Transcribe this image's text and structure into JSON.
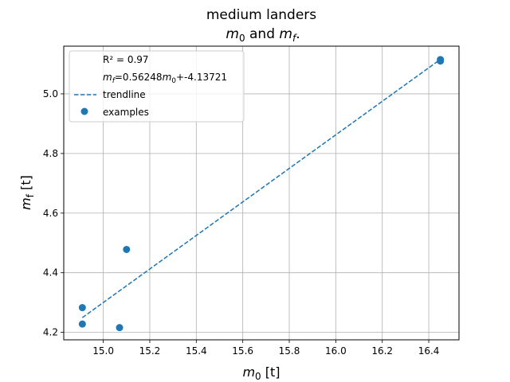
{
  "chart_data": {
    "type": "scatter",
    "title_line1": "medium landers",
    "title_line2": {
      "a": "m",
      "a_sub": "0",
      "mid": " and ",
      "b": "m",
      "b_sub": "f",
      "end": "."
    },
    "xlabel": {
      "var": "m",
      "sub": "0",
      "unit": " [t]"
    },
    "ylabel": {
      "var": "m",
      "sub": "f",
      "unit": " [t]"
    },
    "xlim": [
      14.83,
      16.53
    ],
    "ylim": [
      4.175,
      5.16
    ],
    "xticks": [
      15.0,
      15.2,
      15.4,
      15.6,
      15.8,
      16.0,
      16.2,
      16.4
    ],
    "xtick_labels": [
      "15.0",
      "15.2",
      "15.4",
      "15.6",
      "15.8",
      "16.0",
      "16.2",
      "16.4"
    ],
    "yticks": [
      4.2,
      4.4,
      4.6,
      4.8,
      5.0
    ],
    "ytick_labels": [
      "4.2",
      "4.4",
      "4.6",
      "4.8",
      "5.0"
    ],
    "grid": true,
    "legend_position": "top-left",
    "legend": {
      "r2": "R² = 0.97",
      "equation": {
        "lhs_var": "m",
        "lhs_sub": "f",
        "mid": "=0.56248",
        "rhs_var": "m",
        "rhs_sub": "0",
        "tail": "+-4.13721"
      },
      "trendline": "trendline",
      "examples": "examples"
    },
    "trendline": {
      "slope": 0.56248,
      "intercept": -4.13721,
      "x_start": 14.91,
      "x_end": 16.45
    },
    "series": [
      {
        "x": [
          14.91,
          14.91,
          15.07,
          15.1,
          16.45,
          16.45
        ],
        "y": [
          4.283,
          4.228,
          4.216,
          4.478,
          5.115,
          5.11
        ]
      }
    ],
    "colors": {
      "marker": "#1f77b4",
      "trendline": "#1f77b4"
    }
  }
}
